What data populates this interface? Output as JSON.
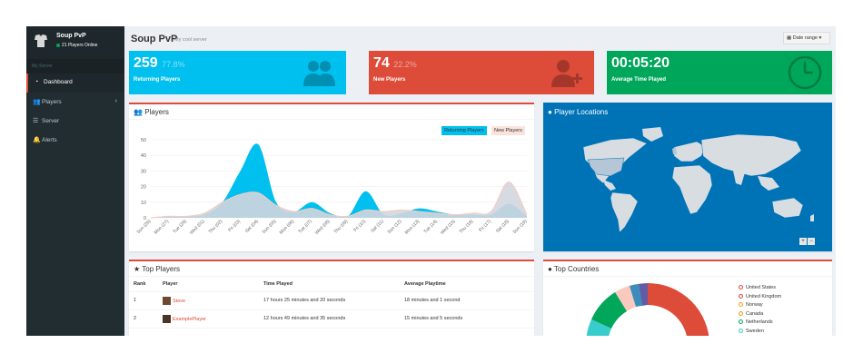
{
  "sidebar": {
    "server_name": "Soup PvP",
    "online_status": "21 Players Online",
    "section_header": "My Server",
    "items": [
      {
        "label": "Dashboard",
        "icon": "dashboard-icon"
      },
      {
        "label": "Players",
        "icon": "users-icon"
      },
      {
        "label": "Server",
        "icon": "list-icon"
      },
      {
        "label": "Alerts",
        "icon": "bell-icon"
      }
    ]
  },
  "header": {
    "title": "Soup PvP",
    "subtitle": "My cool server",
    "date_range_label": "Date range"
  },
  "tiles": [
    {
      "value": "259",
      "percent": "77.8%",
      "label": "Returning Players",
      "color": "#00c0ef",
      "icon": "users-icon"
    },
    {
      "value": "74",
      "percent": "22.2%",
      "label": "New Players",
      "color": "#dd4b39",
      "icon": "user-add-icon"
    },
    {
      "value": "00:05:20",
      "percent": "",
      "label": "Average Time Played",
      "color": "#00a65a",
      "icon": "clock-icon"
    }
  ],
  "players_box": {
    "title": "Players",
    "legend_returning": "Returning Players",
    "legend_new": "New Players"
  },
  "chart_data": {
    "type": "area",
    "title": "Players",
    "ylim": [
      0,
      50
    ],
    "yticks": [
      "0",
      "10",
      "20",
      "30",
      "40",
      "50"
    ],
    "categories": [
      "Sun (26)",
      "Mon (27)",
      "Tue (28)",
      "Wed (01)",
      "Thu (02)",
      "Fri (03)",
      "Sat (04)",
      "Sun (05)",
      "Mon (06)",
      "Tue (07)",
      "Wed (08)",
      "Thu (09)",
      "Fri (10)",
      "Sat (11)",
      "Sun (12)",
      "Mon (13)",
      "Tue (14)",
      "Wed (15)",
      "Thu (16)",
      "Fri (17)",
      "Sat (18)",
      "Sun (19)"
    ],
    "series": [
      {
        "name": "Returning Players",
        "color": "#00c0ef",
        "values": [
          0,
          1,
          1,
          2,
          10,
          30,
          47,
          10,
          4,
          10,
          3,
          1,
          17,
          2,
          3,
          6,
          4,
          2,
          2,
          2,
          9,
          1
        ]
      },
      {
        "name": "New Players",
        "color": "#f9c9bd",
        "values": [
          0,
          1,
          1,
          3,
          10,
          15,
          16,
          8,
          4,
          6,
          2,
          1,
          5,
          4,
          5,
          4,
          3,
          2,
          3,
          4,
          23,
          2
        ]
      }
    ]
  },
  "map_box": {
    "title": "Player Locations",
    "zoom_in": "+",
    "zoom_out": "−"
  },
  "top_players": {
    "title": "Top Players",
    "columns": [
      "Rank",
      "Player",
      "Time Played",
      "Average Playtime"
    ],
    "rows": [
      {
        "rank": "1",
        "player": "Steve",
        "time": "17 hours 25 minutes and 20 seconds",
        "avg": "18 minutes and 1 second"
      },
      {
        "rank": "2",
        "player": "ExamplePlayer",
        "time": "12 hours 49 minutes and 35 seconds",
        "avg": "15 minutes and 5 seconds"
      }
    ]
  },
  "top_countries": {
    "title": "Top Countries",
    "legend": [
      {
        "name": "United States",
        "color": "#dd4b39"
      },
      {
        "name": "United Kingdom",
        "color": "#dd4b39"
      },
      {
        "name": "Norway",
        "color": "#f39c12"
      },
      {
        "name": "Canada",
        "color": "#f39c12"
      },
      {
        "name": "Netherlands",
        "color": "#00a65a"
      },
      {
        "name": "Sweden",
        "color": "#39cccc"
      }
    ]
  }
}
